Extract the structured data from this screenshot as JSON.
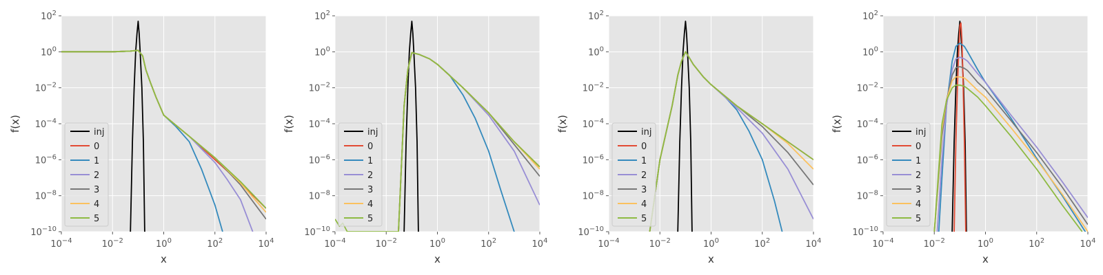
{
  "colors": {
    "inj": "#000000",
    "0": "#E24A33",
    "1": "#348ABD",
    "2": "#988ED5",
    "3": "#777777",
    "4": "#FBC15E",
    "5": "#8EBA42",
    "axes_bg": "#E5E5E5",
    "grid": "#FFFFFF"
  },
  "chart_data": [
    {
      "type": "line",
      "xlabel": "x",
      "ylabel": "f(x)",
      "xscale": "log",
      "yscale": "log",
      "xlim": [
        0.0001,
        10000
      ],
      "ylim": [
        1e-10,
        100
      ],
      "x_ticks": [
        "10^-4",
        "10^-2",
        "10^0",
        "10^2",
        "10^4"
      ],
      "y_ticks": [
        "10^-10",
        "10^-8",
        "10^-6",
        "10^-4",
        "10^-2",
        "10^0",
        "10^2"
      ],
      "grid": true,
      "legend_position": "lower-left",
      "legend": [
        "inj",
        "0",
        "1",
        "2",
        "3",
        "4",
        "5"
      ],
      "series": [
        {
          "name": "inj",
          "x": [
            0.05,
            0.06,
            0.07,
            0.08,
            0.09,
            0.1,
            0.11,
            0.12,
            0.14,
            0.16,
            0.18
          ],
          "y": [
            1e-10,
            1e-05,
            0.01,
            1,
            10,
            50,
            10,
            1,
            0.01,
            1e-05,
            1e-10
          ]
        },
        {
          "name": "0",
          "x": [
            0.0001,
            0.001,
            0.01,
            0.05,
            0.1,
            0.15,
            0.2,
            0.3,
            0.5,
            1,
            10,
            100,
            1000,
            10000
          ],
          "y": [
            1,
            1,
            1,
            1.1,
            1.2,
            0.6,
            0.1,
            0.02,
            0.003,
            0.0003,
            2e-05,
            1e-06,
            5e-08,
            2e-09
          ]
        },
        {
          "name": "1",
          "x": [
            0.0001,
            0.001,
            0.01,
            0.05,
            0.1,
            0.15,
            0.2,
            0.3,
            0.5,
            1,
            3,
            10,
            30,
            100,
            200
          ],
          "y": [
            1,
            1,
            1,
            1.1,
            1.2,
            0.6,
            0.1,
            0.02,
            0.003,
            0.0003,
            7e-05,
            1e-05,
            3e-07,
            3e-09,
            1e-10
          ]
        },
        {
          "name": "2",
          "x": [
            0.0001,
            0.001,
            0.01,
            0.05,
            0.1,
            0.15,
            0.2,
            0.3,
            0.5,
            1,
            3,
            10,
            30,
            100,
            300,
            1000,
            3000
          ],
          "y": [
            1,
            1,
            1,
            1.1,
            1.2,
            0.6,
            0.1,
            0.02,
            0.003,
            0.0003,
            8e-05,
            2e-05,
            4e-06,
            7e-07,
            8e-08,
            6e-09,
            1e-10
          ]
        },
        {
          "name": "3",
          "x": [
            0.0001,
            0.001,
            0.01,
            0.05,
            0.1,
            0.15,
            0.2,
            0.3,
            0.5,
            1,
            10,
            100,
            1000,
            10000
          ],
          "y": [
            1,
            1,
            1,
            1.1,
            1.2,
            0.6,
            0.1,
            0.02,
            0.003,
            0.0003,
            2e-05,
            1.3e-06,
            4e-08,
            5e-10
          ]
        },
        {
          "name": "4",
          "x": [
            0.0001,
            0.001,
            0.01,
            0.05,
            0.1,
            0.15,
            0.2,
            0.3,
            0.5,
            1,
            10,
            100,
            1000,
            10000
          ],
          "y": [
            1,
            1,
            1,
            1.1,
            1.2,
            0.6,
            0.1,
            0.02,
            0.003,
            0.0003,
            2e-05,
            1.3e-06,
            5e-08,
            1.2e-09
          ]
        },
        {
          "name": "5",
          "x": [
            0.0001,
            0.001,
            0.01,
            0.05,
            0.1,
            0.15,
            0.2,
            0.3,
            0.5,
            1,
            10,
            100,
            1000,
            10000
          ],
          "y": [
            1,
            1,
            1,
            1.1,
            1.2,
            0.6,
            0.1,
            0.02,
            0.003,
            0.0003,
            2e-05,
            1.3e-06,
            6e-08,
            2e-09
          ]
        }
      ]
    },
    {
      "type": "line",
      "xlabel": "x",
      "ylabel": "f(x)",
      "xscale": "log",
      "yscale": "log",
      "xlim": [
        0.0001,
        10000
      ],
      "ylim": [
        1e-10,
        100
      ],
      "x_ticks": [
        "10^-4",
        "10^-2",
        "10^0",
        "10^2",
        "10^4"
      ],
      "y_ticks": [
        "10^-10",
        "10^-8",
        "10^-6",
        "10^-4",
        "10^-2",
        "10^0",
        "10^2"
      ],
      "grid": true,
      "legend_position": "lower-left",
      "legend": [
        "inj",
        "0",
        "1",
        "2",
        "3",
        "4",
        "5"
      ],
      "series": [
        {
          "name": "inj",
          "x": [
            0.05,
            0.06,
            0.07,
            0.08,
            0.09,
            0.1,
            0.11,
            0.12,
            0.14,
            0.16,
            0.18
          ],
          "y": [
            1e-10,
            1e-05,
            0.01,
            1,
            10,
            50,
            10,
            1,
            0.01,
            1e-05,
            1e-10
          ]
        },
        {
          "name": "0",
          "x": [
            0.03,
            0.05,
            0.07,
            0.1,
            0.2,
            0.5,
            1,
            10,
            100,
            1000,
            10000
          ],
          "y": [
            1e-10,
            0.001,
            0.1,
            0.9,
            0.7,
            0.4,
            0.2,
            0.01,
            0.0004,
            1e-05,
            4e-07
          ]
        },
        {
          "name": "1",
          "x": [
            0.03,
            0.05,
            0.07,
            0.1,
            0.2,
            0.5,
            1,
            3,
            10,
            30,
            100,
            300,
            1000
          ],
          "y": [
            1e-10,
            0.001,
            0.1,
            0.9,
            0.7,
            0.4,
            0.2,
            0.05,
            0.004,
            0.0002,
            3e-06,
            2e-08,
            1e-10
          ]
        },
        {
          "name": "2",
          "x": [
            0.03,
            0.05,
            0.07,
            0.1,
            0.2,
            0.5,
            1,
            10,
            100,
            1000,
            10000
          ],
          "y": [
            1e-10,
            0.001,
            0.1,
            0.9,
            0.7,
            0.4,
            0.2,
            0.01,
            0.0003,
            3e-06,
            3e-09
          ]
        },
        {
          "name": "3",
          "x": [
            0.03,
            0.05,
            0.07,
            0.1,
            0.2,
            0.5,
            1,
            10,
            100,
            1000,
            10000
          ],
          "y": [
            1e-10,
            0.001,
            0.1,
            0.9,
            0.7,
            0.4,
            0.2,
            0.01,
            0.0004,
            7e-06,
            1.2e-07
          ]
        },
        {
          "name": "4",
          "x": [
            0.03,
            0.05,
            0.07,
            0.1,
            0.2,
            0.5,
            1,
            10,
            100,
            1000,
            10000
          ],
          "y": [
            1e-10,
            0.001,
            0.1,
            0.9,
            0.7,
            0.4,
            0.2,
            0.01,
            0.0004,
            1e-05,
            3e-07
          ]
        },
        {
          "name": "5",
          "x": [
            0.0001,
            0.00015,
            0.0002,
            0.0003,
            0.03,
            0.05,
            0.07,
            0.1,
            0.2,
            0.5,
            1,
            10,
            100,
            1000,
            10000
          ],
          "y": [
            5e-10,
            2e-10,
            3e-10,
            1e-10,
            1e-10,
            0.001,
            0.1,
            0.9,
            0.7,
            0.4,
            0.2,
            0.01,
            0.0004,
            1e-05,
            4e-07
          ]
        }
      ]
    },
    {
      "type": "line",
      "xlabel": "x",
      "ylabel": "f(x)",
      "xscale": "log",
      "yscale": "log",
      "xlim": [
        0.0001,
        10000
      ],
      "ylim": [
        1e-10,
        100
      ],
      "x_ticks": [
        "10^-4",
        "10^-2",
        "10^0",
        "10^2",
        "10^4"
      ],
      "y_ticks": [
        "10^-10",
        "10^-8",
        "10^-6",
        "10^-4",
        "10^-2",
        "10^0",
        "10^2"
      ],
      "grid": true,
      "legend_position": "lower-left",
      "legend": [
        "inj",
        "0",
        "1",
        "2",
        "3",
        "4",
        "5"
      ],
      "series": [
        {
          "name": "inj",
          "x": [
            0.05,
            0.06,
            0.07,
            0.08,
            0.09,
            0.1,
            0.11,
            0.12,
            0.14,
            0.16,
            0.18
          ],
          "y": [
            1e-10,
            1e-05,
            0.01,
            1,
            10,
            50,
            10,
            1,
            0.01,
            1e-05,
            1e-10
          ]
        },
        {
          "name": "0",
          "x": [
            0.004,
            0.01,
            0.03,
            0.05,
            0.07,
            0.1,
            0.15,
            0.2,
            0.5,
            1,
            10,
            100,
            1000,
            10000
          ],
          "y": [
            1e-10,
            1e-06,
            0.001,
            0.05,
            0.3,
            1,
            0.4,
            0.2,
            0.04,
            0.015,
            0.001,
            0.0001,
            1e-05,
            1e-06
          ]
        },
        {
          "name": "1",
          "x": [
            0.004,
            0.01,
            0.03,
            0.05,
            0.07,
            0.1,
            0.15,
            0.2,
            0.5,
            1,
            3,
            10,
            30,
            100,
            300,
            600
          ],
          "y": [
            1e-10,
            1e-06,
            0.001,
            0.05,
            0.3,
            1,
            0.4,
            0.2,
            0.04,
            0.015,
            0.004,
            0.0006,
            4e-05,
            1e-06,
            5e-09,
            1e-10
          ]
        },
        {
          "name": "2",
          "x": [
            0.004,
            0.01,
            0.03,
            0.05,
            0.07,
            0.1,
            0.15,
            0.2,
            0.5,
            1,
            10,
            100,
            1000,
            10000
          ],
          "y": [
            1e-10,
            1e-06,
            0.001,
            0.05,
            0.3,
            1,
            0.4,
            0.2,
            0.04,
            0.015,
            0.0008,
            3e-05,
            3e-07,
            5e-10
          ]
        },
        {
          "name": "3",
          "x": [
            0.004,
            0.01,
            0.03,
            0.05,
            0.07,
            0.1,
            0.15,
            0.2,
            0.5,
            1,
            10,
            100,
            1000,
            10000
          ],
          "y": [
            1e-10,
            1e-06,
            0.001,
            0.05,
            0.3,
            1,
            0.4,
            0.2,
            0.04,
            0.015,
            0.001,
            7e-05,
            2.5e-06,
            4e-08
          ]
        },
        {
          "name": "4",
          "x": [
            0.004,
            0.01,
            0.03,
            0.05,
            0.07,
            0.1,
            0.15,
            0.2,
            0.5,
            1,
            10,
            100,
            1000,
            10000
          ],
          "y": [
            1e-10,
            1e-06,
            0.001,
            0.05,
            0.3,
            1,
            0.4,
            0.2,
            0.04,
            0.015,
            0.001,
            0.0001,
            8e-06,
            3e-07
          ]
        },
        {
          "name": "5",
          "x": [
            0.004,
            0.01,
            0.03,
            0.05,
            0.07,
            0.1,
            0.15,
            0.2,
            0.5,
            1,
            10,
            100,
            1000,
            10000
          ],
          "y": [
            1e-10,
            1e-06,
            0.001,
            0.05,
            0.3,
            1,
            0.4,
            0.2,
            0.04,
            0.015,
            0.001,
            0.0001,
            1e-05,
            1e-06
          ]
        }
      ]
    },
    {
      "type": "line",
      "xlabel": "x",
      "ylabel": "f(x)",
      "xscale": "log",
      "yscale": "log",
      "xlim": [
        0.0001,
        10000
      ],
      "ylim": [
        1e-10,
        100
      ],
      "x_ticks": [
        "10^-4",
        "10^-2",
        "10^0",
        "10^2",
        "10^4"
      ],
      "y_ticks": [
        "10^-10",
        "10^-8",
        "10^-6",
        "10^-4",
        "10^-2",
        "10^0",
        "10^2"
      ],
      "grid": true,
      "legend_position": "lower-left",
      "legend": [
        "inj",
        "0",
        "1",
        "2",
        "3",
        "4",
        "5"
      ],
      "series": [
        {
          "name": "inj",
          "x": [
            0.05,
            0.06,
            0.07,
            0.08,
            0.09,
            0.1,
            0.11,
            0.12,
            0.14,
            0.16,
            0.18
          ],
          "y": [
            1e-10,
            1e-05,
            0.01,
            1,
            10,
            50,
            10,
            1,
            0.01,
            1e-05,
            1e-10
          ]
        },
        {
          "name": "0",
          "x": [
            0.06,
            0.07,
            0.08,
            0.09,
            0.1,
            0.11,
            0.12,
            0.13,
            0.15,
            0.17
          ],
          "y": [
            1e-10,
            1e-05,
            0.01,
            1,
            30,
            40,
            5,
            0.1,
            1e-05,
            1e-10
          ]
        },
        {
          "name": "1",
          "x": [
            0.015,
            0.02,
            0.03,
            0.05,
            0.07,
            0.1,
            0.15,
            0.2,
            0.5,
            1,
            10,
            100,
            1000,
            10000
          ],
          "y": [
            1e-10,
            1e-07,
            0.001,
            0.3,
            2,
            3,
            2,
            1,
            0.1,
            0.02,
            0.0002,
            1.2e-06,
            1e-08,
            6e-11
          ]
        },
        {
          "name": "2",
          "x": [
            0.013,
            0.02,
            0.03,
            0.05,
            0.07,
            0.1,
            0.15,
            0.2,
            0.5,
            1,
            10,
            100,
            1000,
            10000
          ],
          "y": [
            1e-10,
            1e-06,
            0.001,
            0.1,
            0.4,
            0.5,
            0.4,
            0.3,
            0.06,
            0.02,
            0.0003,
            5e-06,
            6e-08,
            6e-10
          ]
        },
        {
          "name": "3",
          "x": [
            0.01,
            0.02,
            0.03,
            0.05,
            0.07,
            0.1,
            0.15,
            0.2,
            0.5,
            1,
            10,
            100,
            1000,
            10000
          ],
          "y": [
            1e-10,
            2e-05,
            0.002,
            0.05,
            0.13,
            0.15,
            0.12,
            0.09,
            0.02,
            0.008,
            0.00015,
            2.5e-06,
            3e-08,
            2.5e-10
          ]
        },
        {
          "name": "4",
          "x": [
            0.01,
            0.02,
            0.03,
            0.05,
            0.07,
            0.1,
            0.15,
            0.2,
            0.5,
            1,
            10,
            100,
            1000,
            10000
          ],
          "y": [
            1e-10,
            5e-05,
            0.002,
            0.025,
            0.04,
            0.04,
            0.035,
            0.025,
            0.007,
            0.003,
            6e-05,
            1e-06,
            1.2e-08,
            1e-10
          ]
        },
        {
          "name": "5",
          "x": [
            0.01,
            0.02,
            0.03,
            0.05,
            0.07,
            0.1,
            0.15,
            0.2,
            0.5,
            1,
            10,
            100,
            1000,
            6000
          ],
          "y": [
            1e-10,
            0.0001,
            0.002,
            0.01,
            0.014,
            0.014,
            0.012,
            0.009,
            0.003,
            0.001,
            2e-05,
            3e-07,
            3e-09,
            1e-10
          ]
        }
      ]
    }
  ]
}
